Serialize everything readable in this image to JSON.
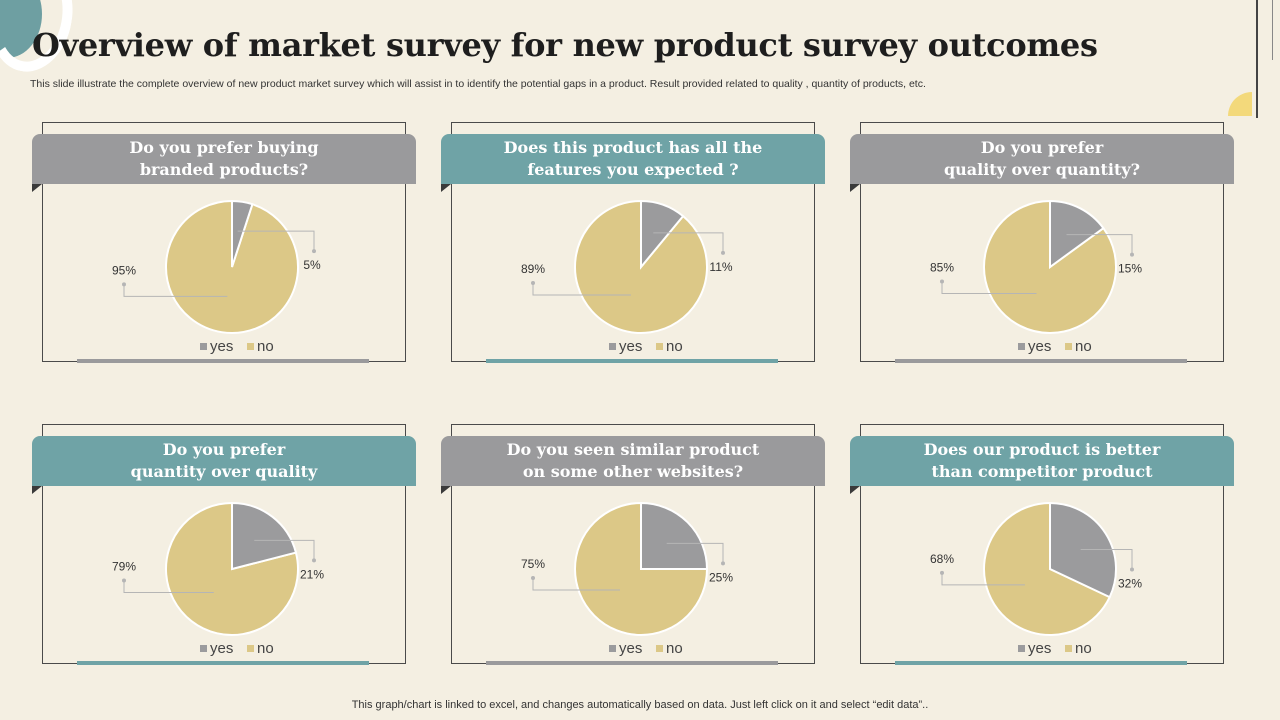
{
  "title": "Overview of market survey for new product survey outcomes",
  "subtitle": "This slide illustrate  the complete overview of new product market survey which will assist in to identify the potential gaps in a product. Result provided related to quality ,  quantity of products, etc.",
  "footer": "This graph/chart is linked to excel,  and changes automatically based on data. Just left click on it and select “edit data”..",
  "colors": {
    "yes": "#9b9b9d",
    "no": "#dcc887",
    "teal": "#6fa3a6",
    "gray": "#9a9a9c"
  },
  "chart_data": [
    {
      "type": "pie",
      "title_line1": "Do you prefer buying",
      "title_line2": "branded products?",
      "header_style": "gray",
      "legend": [
        "yes",
        "no"
      ],
      "values": [
        5,
        95
      ],
      "labels": [
        "5%",
        "95%"
      ]
    },
    {
      "type": "pie",
      "title_line1": "Does this product has all the",
      "title_line2": "features you expected ?",
      "header_style": "teal",
      "legend": [
        "yes",
        "no"
      ],
      "values": [
        11,
        89
      ],
      "labels": [
        "11%",
        "89%"
      ]
    },
    {
      "type": "pie",
      "title_line1": "Do you prefer",
      "title_line2": "quality over quantity?",
      "header_style": "gray",
      "legend": [
        "yes",
        "no"
      ],
      "values": [
        15,
        85
      ],
      "labels": [
        "15%",
        "85%"
      ]
    },
    {
      "type": "pie",
      "title_line1": "Do you prefer",
      "title_line2": "quantity over quality",
      "header_style": "teal",
      "legend": [
        "yes",
        "no"
      ],
      "values": [
        21,
        79
      ],
      "labels": [
        "21%",
        "79%"
      ]
    },
    {
      "type": "pie",
      "title_line1": "Do you seen similar product",
      "title_line2": "on some other websites?",
      "header_style": "gray",
      "legend": [
        "yes",
        "no"
      ],
      "values": [
        25,
        75
      ],
      "labels": [
        "25%",
        "75%"
      ]
    },
    {
      "type": "pie",
      "title_line1": "Does our product is better",
      "title_line2": "than competitor product",
      "header_style": "teal",
      "legend": [
        "yes",
        "no"
      ],
      "values": [
        32,
        68
      ],
      "labels": [
        "32%",
        "68%"
      ]
    }
  ]
}
